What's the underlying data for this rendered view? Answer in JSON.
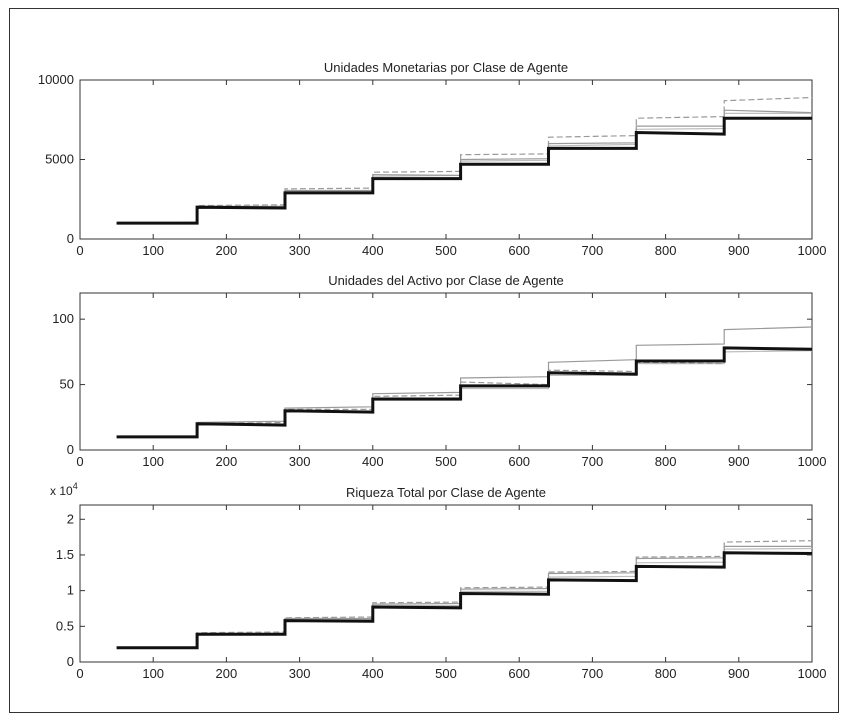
{
  "chart_data": [
    {
      "type": "line",
      "title": "Unidades Monetarias por Clase de Agente",
      "xlabel": "",
      "ylabel": "",
      "xlim": [
        0,
        1000
      ],
      "ylim": [
        0,
        10000
      ],
      "xticks": [
        "0",
        "100",
        "200",
        "300",
        "400",
        "500",
        "600",
        "700",
        "800",
        "900",
        "1000"
      ],
      "yticks": [
        "0",
        "5000",
        "10000"
      ],
      "ytick_values": [
        0,
        5000,
        10000
      ],
      "y_multiplier": "",
      "grid": false,
      "series": [
        {
          "style": "bold-black",
          "color": "#111111",
          "x": [
            50,
            160,
            160,
            280,
            280,
            400,
            400,
            520,
            520,
            640,
            640,
            760,
            760,
            880,
            880,
            1000
          ],
          "y": [
            1000,
            1000,
            2000,
            1950,
            2900,
            2900,
            3800,
            3800,
            4700,
            4700,
            5700,
            5700,
            6700,
            6600,
            7600,
            7600
          ]
        },
        {
          "style": "thin-gray",
          "color": "#9a9a9a",
          "x": [
            50,
            160,
            160,
            280,
            280,
            400,
            400,
            520,
            520,
            640,
            640,
            760,
            760,
            880,
            880,
            1000
          ],
          "y": [
            1000,
            1000,
            2050,
            2050,
            3050,
            3050,
            4050,
            4000,
            5000,
            5050,
            6000,
            6050,
            7100,
            7100,
            8100,
            7950
          ]
        },
        {
          "style": "dashed-gray",
          "color": "#9a9a9a",
          "x": [
            50,
            160,
            160,
            280,
            280,
            400,
            400,
            520,
            520,
            640,
            640,
            760,
            760,
            880,
            880,
            1000
          ],
          "y": [
            1000,
            1050,
            2100,
            2150,
            3150,
            3200,
            4200,
            4250,
            5300,
            5350,
            6400,
            6500,
            7600,
            7700,
            8700,
            8900
          ]
        },
        {
          "style": "thin-gray-2",
          "color": "#bdbdbd",
          "x": [
            50,
            160,
            160,
            280,
            280,
            400,
            400,
            520,
            520,
            640,
            640,
            760,
            760,
            880,
            880,
            1000
          ],
          "y": [
            1000,
            1000,
            2000,
            2050,
            3000,
            3000,
            3950,
            4000,
            4900,
            4950,
            5850,
            5950,
            6900,
            6950,
            7900,
            7900
          ]
        }
      ]
    },
    {
      "type": "line",
      "title": "Unidades del Activo por Clase de Agente",
      "xlabel": "",
      "ylabel": "",
      "xlim": [
        0,
        1000
      ],
      "ylim": [
        0,
        120
      ],
      "xticks": [
        "0",
        "100",
        "200",
        "300",
        "400",
        "500",
        "600",
        "700",
        "800",
        "900",
        "1000"
      ],
      "yticks": [
        "0",
        "50",
        "100"
      ],
      "ytick_values": [
        0,
        50,
        100
      ],
      "y_multiplier": "",
      "grid": false,
      "series": [
        {
          "style": "bold-black",
          "color": "#111111",
          "x": [
            50,
            160,
            160,
            280,
            280,
            400,
            400,
            520,
            520,
            640,
            640,
            760,
            760,
            880,
            880,
            1000
          ],
          "y": [
            10,
            10,
            20,
            19,
            30,
            29,
            39,
            39,
            49,
            49,
            59,
            58,
            68,
            68,
            78,
            77
          ]
        },
        {
          "style": "thin-gray",
          "color": "#9a9a9a",
          "x": [
            50,
            160,
            160,
            280,
            280,
            400,
            400,
            520,
            520,
            640,
            640,
            760,
            760,
            880,
            880,
            1000
          ],
          "y": [
            10,
            10,
            21,
            22,
            32,
            33,
            43,
            44,
            55,
            56,
            67,
            69,
            80,
            81,
            92,
            94
          ]
        },
        {
          "style": "dashed-gray",
          "color": "#9a9a9a",
          "x": [
            50,
            160,
            160,
            280,
            280,
            400,
            400,
            520,
            520,
            640,
            640,
            760,
            760,
            880,
            880,
            1000
          ],
          "y": [
            10,
            10,
            20,
            21,
            31,
            31,
            41,
            42,
            52,
            50,
            61,
            60,
            67,
            66,
            78,
            77
          ]
        },
        {
          "style": "thin-gray-2",
          "color": "#bdbdbd",
          "x": [
            50,
            160,
            160,
            280,
            280,
            400,
            400,
            520,
            520,
            640,
            640,
            760,
            760,
            880,
            880,
            1000
          ],
          "y": [
            10,
            10,
            19,
            20,
            29,
            30,
            38,
            38,
            47,
            47,
            57,
            57,
            66,
            66,
            75,
            76
          ]
        }
      ]
    },
    {
      "type": "line",
      "title": "Riqueza Total por Clase de Agente",
      "xlabel": "",
      "ylabel": "",
      "xlim": [
        0,
        1000
      ],
      "ylim": [
        0,
        2.2
      ],
      "xticks": [
        "0",
        "100",
        "200",
        "300",
        "400",
        "500",
        "600",
        "700",
        "800",
        "900",
        "1000"
      ],
      "yticks": [
        "0",
        "0.5",
        "1",
        "1.5",
        "2"
      ],
      "ytick_values": [
        0,
        0.5,
        1,
        1.5,
        2
      ],
      "y_multiplier": "x 10",
      "y_multiplier_exp": "4",
      "grid": false,
      "series": [
        {
          "style": "bold-black",
          "color": "#111111",
          "x": [
            50,
            160,
            160,
            280,
            280,
            400,
            400,
            520,
            520,
            640,
            640,
            760,
            760,
            880,
            880,
            1000
          ],
          "y": [
            0.2,
            0.2,
            0.39,
            0.39,
            0.58,
            0.57,
            0.77,
            0.76,
            0.96,
            0.95,
            1.15,
            1.14,
            1.34,
            1.33,
            1.53,
            1.52
          ]
        },
        {
          "style": "thin-gray",
          "color": "#9a9a9a",
          "x": [
            50,
            160,
            160,
            280,
            280,
            400,
            400,
            520,
            520,
            640,
            640,
            760,
            760,
            880,
            880,
            1000
          ],
          "y": [
            0.2,
            0.2,
            0.4,
            0.4,
            0.61,
            0.61,
            0.81,
            0.82,
            1.02,
            1.03,
            1.24,
            1.25,
            1.45,
            1.46,
            1.62,
            1.62
          ]
        },
        {
          "style": "dashed-gray",
          "color": "#9a9a9a",
          "x": [
            50,
            160,
            160,
            280,
            280,
            400,
            400,
            520,
            520,
            640,
            640,
            760,
            760,
            880,
            880,
            1000
          ],
          "y": [
            0.2,
            0.21,
            0.41,
            0.42,
            0.62,
            0.63,
            0.83,
            0.84,
            1.04,
            1.05,
            1.26,
            1.27,
            1.47,
            1.48,
            1.68,
            1.7
          ]
        },
        {
          "style": "thin-gray-2",
          "color": "#bdbdbd",
          "x": [
            50,
            160,
            160,
            280,
            280,
            400,
            400,
            520,
            520,
            640,
            640,
            760,
            760,
            880,
            880,
            1000
          ],
          "y": [
            0.2,
            0.2,
            0.4,
            0.4,
            0.6,
            0.6,
            0.79,
            0.79,
            0.99,
            0.99,
            1.19,
            1.2,
            1.39,
            1.4,
            1.58,
            1.59
          ]
        }
      ]
    }
  ]
}
